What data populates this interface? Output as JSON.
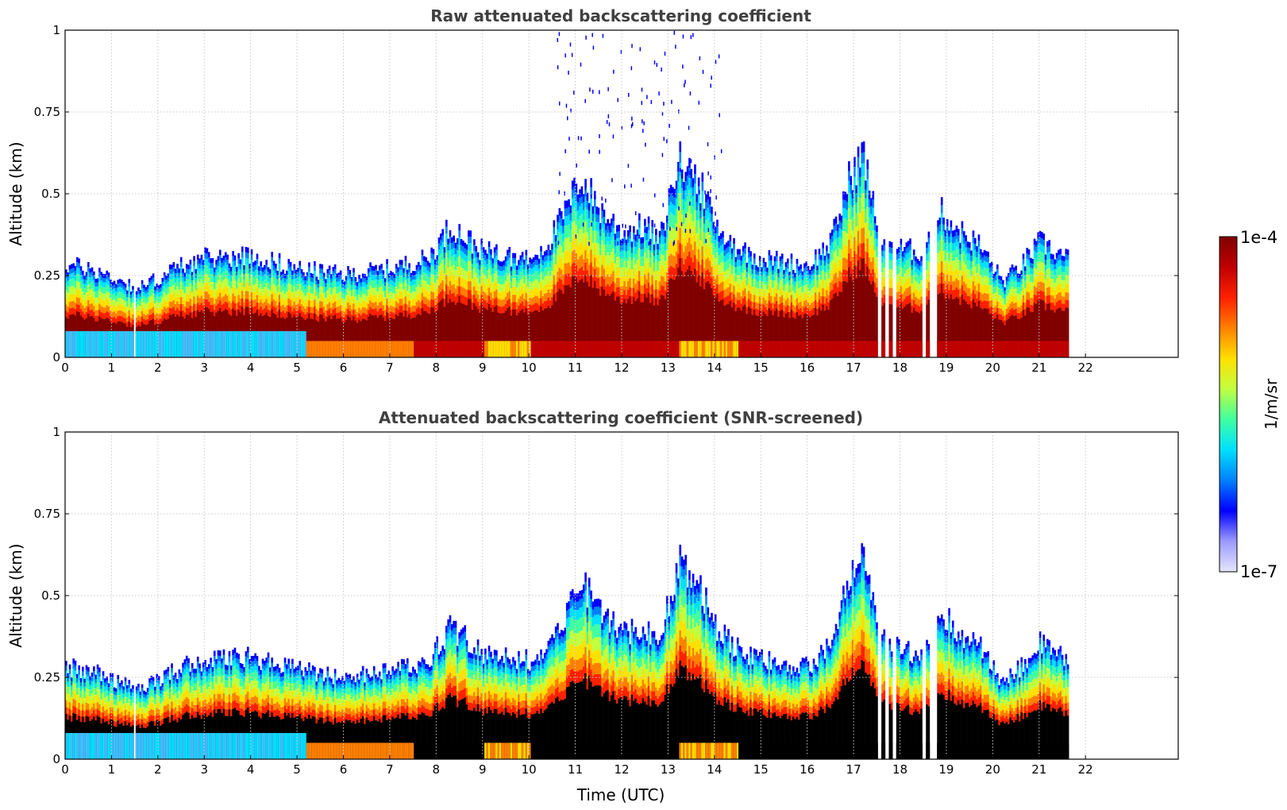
{
  "chart_data": [
    {
      "type": "heatmap",
      "title": "Raw attenuated backscattering coefficient",
      "xlabel": "",
      "ylabel": "Altitude (km)",
      "xlim": [
        0,
        24
      ],
      "ylim": [
        0,
        1
      ],
      "xticks": [
        "0",
        "1",
        "2",
        "3",
        "4",
        "5",
        "6",
        "7",
        "8",
        "9",
        "10",
        "11",
        "12",
        "13",
        "14",
        "15",
        "16",
        "17",
        "18",
        "19",
        "20",
        "21",
        "22"
      ],
      "yticks": [
        "0",
        "0.25",
        "0.5",
        "0.75",
        "1"
      ],
      "grid": true,
      "data_end_hour": 21.6,
      "gaps_hours": [
        1.48,
        17.55,
        17.7,
        17.85,
        18.5,
        18.65,
        18.75
      ],
      "layer_top_km": [
        {
          "x": 0.0,
          "y": 0.28
        },
        {
          "x": 0.5,
          "y": 0.27
        },
        {
          "x": 1.4,
          "y": 0.22
        },
        {
          "x": 1.6,
          "y": 0.21
        },
        {
          "x": 2.5,
          "y": 0.28
        },
        {
          "x": 3.0,
          "y": 0.3
        },
        {
          "x": 4.0,
          "y": 0.31
        },
        {
          "x": 5.0,
          "y": 0.27
        },
        {
          "x": 6.0,
          "y": 0.25
        },
        {
          "x": 7.0,
          "y": 0.27
        },
        {
          "x": 7.8,
          "y": 0.3
        },
        {
          "x": 8.3,
          "y": 0.4
        },
        {
          "x": 9.0,
          "y": 0.32
        },
        {
          "x": 10.0,
          "y": 0.3
        },
        {
          "x": 10.4,
          "y": 0.35
        },
        {
          "x": 10.8,
          "y": 0.45
        },
        {
          "x": 11.1,
          "y": 0.55
        },
        {
          "x": 11.5,
          "y": 0.45
        },
        {
          "x": 12.0,
          "y": 0.38
        },
        {
          "x": 12.5,
          "y": 0.4
        },
        {
          "x": 12.8,
          "y": 0.35
        },
        {
          "x": 13.2,
          "y": 0.6
        },
        {
          "x": 13.6,
          "y": 0.55
        },
        {
          "x": 14.0,
          "y": 0.4
        },
        {
          "x": 14.5,
          "y": 0.33
        },
        {
          "x": 15.0,
          "y": 0.3
        },
        {
          "x": 16.0,
          "y": 0.28
        },
        {
          "x": 16.5,
          "y": 0.35
        },
        {
          "x": 16.9,
          "y": 0.55
        },
        {
          "x": 17.2,
          "y": 0.62
        },
        {
          "x": 17.5,
          "y": 0.38
        },
        {
          "x": 18.0,
          "y": 0.33
        },
        {
          "x": 18.5,
          "y": 0.32
        },
        {
          "x": 18.8,
          "y": 0.45
        },
        {
          "x": 19.3,
          "y": 0.38
        },
        {
          "x": 19.7,
          "y": 0.34
        },
        {
          "x": 20.2,
          "y": 0.23
        },
        {
          "x": 20.6,
          "y": 0.28
        },
        {
          "x": 21.0,
          "y": 0.35
        },
        {
          "x": 21.6,
          "y": 0.3
        }
      ]
    },
    {
      "type": "heatmap",
      "title": "Attenuated backscattering coefficient (SNR-screened)",
      "xlabel": "Time (UTC)",
      "ylabel": "Altitude (km)",
      "xlim": [
        0,
        24
      ],
      "ylim": [
        0,
        1
      ],
      "xticks": [
        "0",
        "1",
        "2",
        "3",
        "4",
        "5",
        "6",
        "7",
        "8",
        "9",
        "10",
        "11",
        "12",
        "13",
        "14",
        "15",
        "16",
        "17",
        "18",
        "19",
        "20",
        "21",
        "22"
      ],
      "yticks": [
        "0",
        "0.25",
        "0.5",
        "0.75",
        "1"
      ],
      "grid": true,
      "data_end_hour": 21.6,
      "screened_color": "#000000",
      "gaps_hours": [
        1.48,
        17.55,
        17.7,
        17.85,
        18.5,
        18.65,
        18.75
      ]
    }
  ],
  "colorbar": {
    "label": "1/m/sr",
    "max_label": "1e-4",
    "min_label": "1e-7",
    "scale": "log",
    "colormap": [
      "#e6e6fa",
      "#9a9aff",
      "#0000ff",
      "#0080ff",
      "#00e0ff",
      "#40ffa0",
      "#c0ff40",
      "#ffe000",
      "#ff8000",
      "#ff2000",
      "#c00000",
      "#800000"
    ]
  }
}
